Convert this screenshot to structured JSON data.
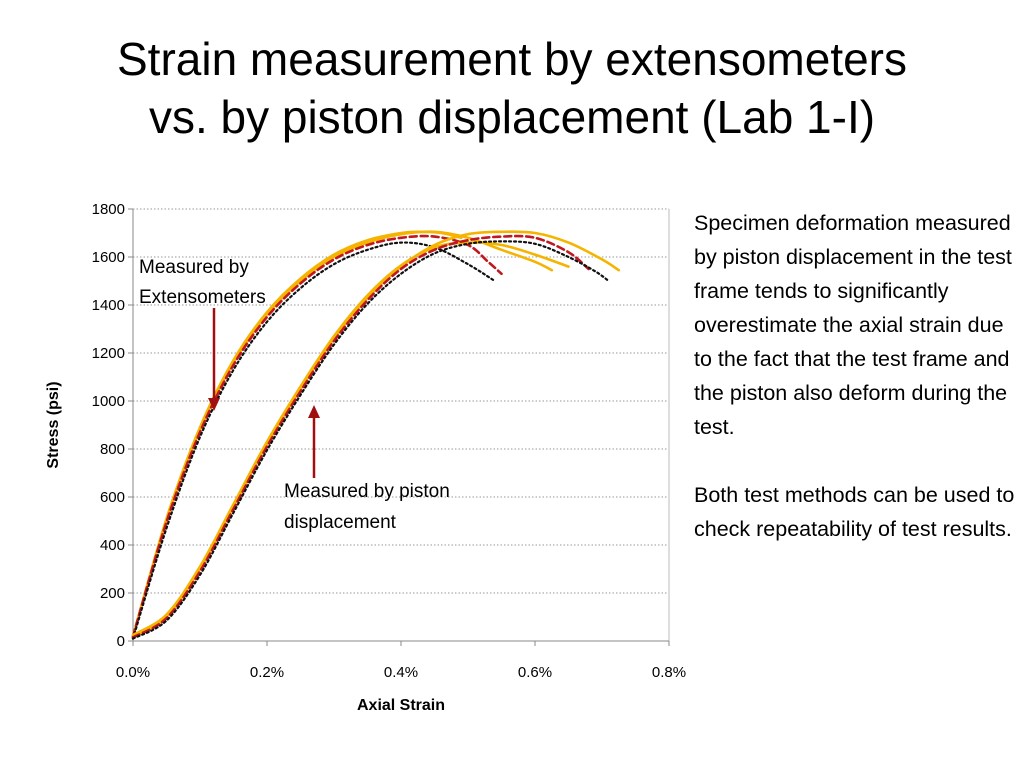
{
  "slide": {
    "title_line1": "Strain measurement by extensometers",
    "title_line2": "vs. by piston displacement (Lab 1-I)",
    "paragraph1": "Specimen deformation measured by piston displacement in the test frame tends to significantly overestimate the axial strain due to the fact that the test frame and the piston also deform during the test.",
    "paragraph2": "Both test methods can be used to check repeatability of test results."
  },
  "chart_data": {
    "type": "line",
    "xlabel": "Axial Strain",
    "ylabel": "Stress (psi)",
    "xlim": [
      0,
      0.008
    ],
    "ylim": [
      0,
      1800
    ],
    "x_ticks": [
      "0.0%",
      "0.2%",
      "0.4%",
      "0.6%",
      "0.8%"
    ],
    "y_ticks": [
      "0",
      "200",
      "400",
      "600",
      "800",
      "1000",
      "1200",
      "1400",
      "1600",
      "1800"
    ],
    "grid": "horizontal dotted",
    "colors": {
      "orange": "#f4b400",
      "red_dashed": "#c0181f",
      "black_dotted": "#111111",
      "arrow": "#a01010",
      "grid": "#999999"
    },
    "annotations": [
      {
        "text_line1": "Measured by",
        "text_line2": "Extensometers"
      },
      {
        "text_line1": "Measured by piston",
        "text_line2": "displacement"
      }
    ],
    "series": [
      {
        "group": "extensometer",
        "style": "solid-orange",
        "points": [
          [
            0.0,
            20
          ],
          [
            0.0005,
            500
          ],
          [
            0.001,
            880
          ],
          [
            0.0015,
            1160
          ],
          [
            0.002,
            1360
          ],
          [
            0.0025,
            1500
          ],
          [
            0.003,
            1600
          ],
          [
            0.0035,
            1660
          ],
          [
            0.004,
            1695
          ],
          [
            0.0045,
            1705
          ],
          [
            0.005,
            1680
          ],
          [
            0.0055,
            1630
          ],
          [
            0.006,
            1580
          ],
          [
            0.00625,
            1545
          ]
        ]
      },
      {
        "group": "extensometer",
        "style": "solid-orange",
        "points": [
          [
            0.0,
            20
          ],
          [
            0.0005,
            510
          ],
          [
            0.001,
            890
          ],
          [
            0.0015,
            1170
          ],
          [
            0.002,
            1370
          ],
          [
            0.0025,
            1510
          ],
          [
            0.003,
            1610
          ],
          [
            0.0035,
            1670
          ],
          [
            0.004,
            1700
          ],
          [
            0.0043,
            1705
          ],
          [
            0.0046,
            1700
          ],
          [
            0.0049,
            1680
          ]
        ]
      },
      {
        "group": "extensometer",
        "style": "dashed-red",
        "points": [
          [
            0.0,
            20
          ],
          [
            0.0005,
            495
          ],
          [
            0.001,
            870
          ],
          [
            0.0015,
            1150
          ],
          [
            0.002,
            1350
          ],
          [
            0.0025,
            1490
          ],
          [
            0.003,
            1590
          ],
          [
            0.0035,
            1650
          ],
          [
            0.004,
            1680
          ],
          [
            0.0045,
            1685
          ],
          [
            0.005,
            1650
          ],
          [
            0.0053,
            1580
          ],
          [
            0.0055,
            1530
          ]
        ]
      },
      {
        "group": "extensometer",
        "style": "dotted-black",
        "points": [
          [
            0.0,
            10
          ],
          [
            0.0005,
            470
          ],
          [
            0.001,
            850
          ],
          [
            0.0015,
            1130
          ],
          [
            0.002,
            1330
          ],
          [
            0.0025,
            1470
          ],
          [
            0.003,
            1570
          ],
          [
            0.0035,
            1630
          ],
          [
            0.004,
            1660
          ],
          [
            0.0045,
            1640
          ],
          [
            0.005,
            1570
          ],
          [
            0.0054,
            1500
          ]
        ]
      },
      {
        "group": "piston",
        "style": "solid-orange",
        "points": [
          [
            0.0,
            15
          ],
          [
            0.0005,
            100
          ],
          [
            0.001,
            300
          ],
          [
            0.0015,
            560
          ],
          [
            0.002,
            820
          ],
          [
            0.0025,
            1050
          ],
          [
            0.003,
            1260
          ],
          [
            0.0035,
            1430
          ],
          [
            0.004,
            1560
          ],
          [
            0.0045,
            1650
          ],
          [
            0.005,
            1695
          ],
          [
            0.0055,
            1705
          ],
          [
            0.006,
            1700
          ],
          [
            0.0065,
            1660
          ],
          [
            0.007,
            1590
          ],
          [
            0.00725,
            1545
          ]
        ]
      },
      {
        "group": "piston",
        "style": "solid-orange",
        "points": [
          [
            0.0,
            25
          ],
          [
            0.0005,
            110
          ],
          [
            0.001,
            310
          ],
          [
            0.0015,
            570
          ],
          [
            0.002,
            830
          ],
          [
            0.0025,
            1060
          ],
          [
            0.003,
            1270
          ],
          [
            0.0035,
            1440
          ],
          [
            0.004,
            1565
          ],
          [
            0.0045,
            1640
          ],
          [
            0.005,
            1660
          ],
          [
            0.0055,
            1650
          ],
          [
            0.006,
            1610
          ],
          [
            0.0065,
            1560
          ]
        ]
      },
      {
        "group": "piston",
        "style": "dashed-red",
        "points": [
          [
            0.0,
            15
          ],
          [
            0.0005,
            95
          ],
          [
            0.001,
            290
          ],
          [
            0.0015,
            550
          ],
          [
            0.002,
            810
          ],
          [
            0.0025,
            1040
          ],
          [
            0.003,
            1250
          ],
          [
            0.0035,
            1420
          ],
          [
            0.004,
            1550
          ],
          [
            0.0045,
            1630
          ],
          [
            0.005,
            1670
          ],
          [
            0.0055,
            1685
          ],
          [
            0.006,
            1680
          ],
          [
            0.0065,
            1620
          ],
          [
            0.0068,
            1550
          ]
        ]
      },
      {
        "group": "piston",
        "style": "dotted-black",
        "points": [
          [
            0.0,
            10
          ],
          [
            0.0005,
            85
          ],
          [
            0.001,
            275
          ],
          [
            0.0015,
            535
          ],
          [
            0.002,
            795
          ],
          [
            0.0025,
            1025
          ],
          [
            0.003,
            1235
          ],
          [
            0.0035,
            1405
          ],
          [
            0.004,
            1530
          ],
          [
            0.0045,
            1615
          ],
          [
            0.005,
            1655
          ],
          [
            0.0055,
            1665
          ],
          [
            0.006,
            1655
          ],
          [
            0.0065,
            1600
          ],
          [
            0.0069,
            1540
          ],
          [
            0.0071,
            1500
          ]
        ]
      }
    ]
  }
}
